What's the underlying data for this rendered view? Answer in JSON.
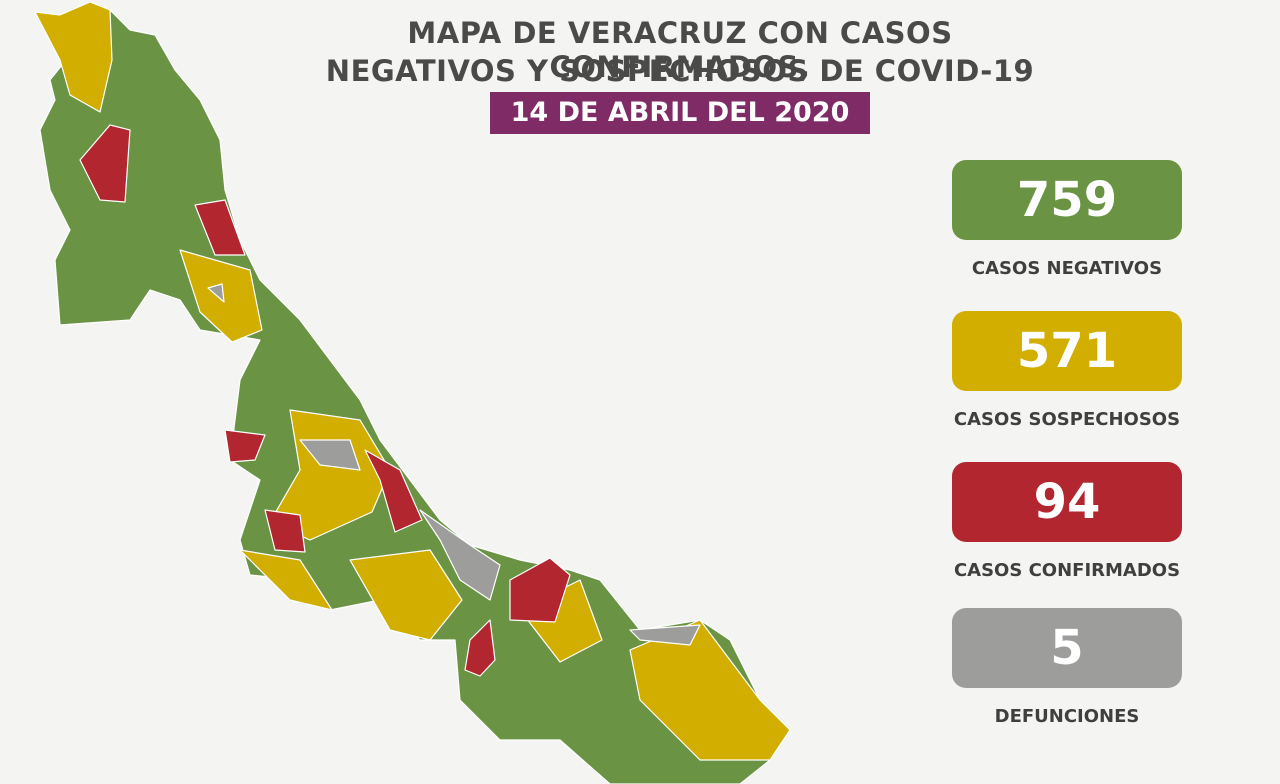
{
  "header": {
    "title_line1": "MAPA DE VERACRUZ CON CASOS CONFIRMADOS,",
    "title_line2": "NEGATIVOS Y SOSPECHOSOS DE COVID-19",
    "date": "14 DE ABRIL DEL 2020"
  },
  "stats": [
    {
      "value": "759",
      "label": "CASOS NEGATIVOS",
      "color": "#6a9444"
    },
    {
      "value": "571",
      "label": "CASOS SOSPECHOSOS",
      "color": "#d2ae00"
    },
    {
      "value": "94",
      "label": "CASOS CONFIRMADOS",
      "color": "#b2262f"
    },
    {
      "value": "5",
      "label": "DEFUNCIONES",
      "color": "#9d9d9b"
    }
  ]
}
